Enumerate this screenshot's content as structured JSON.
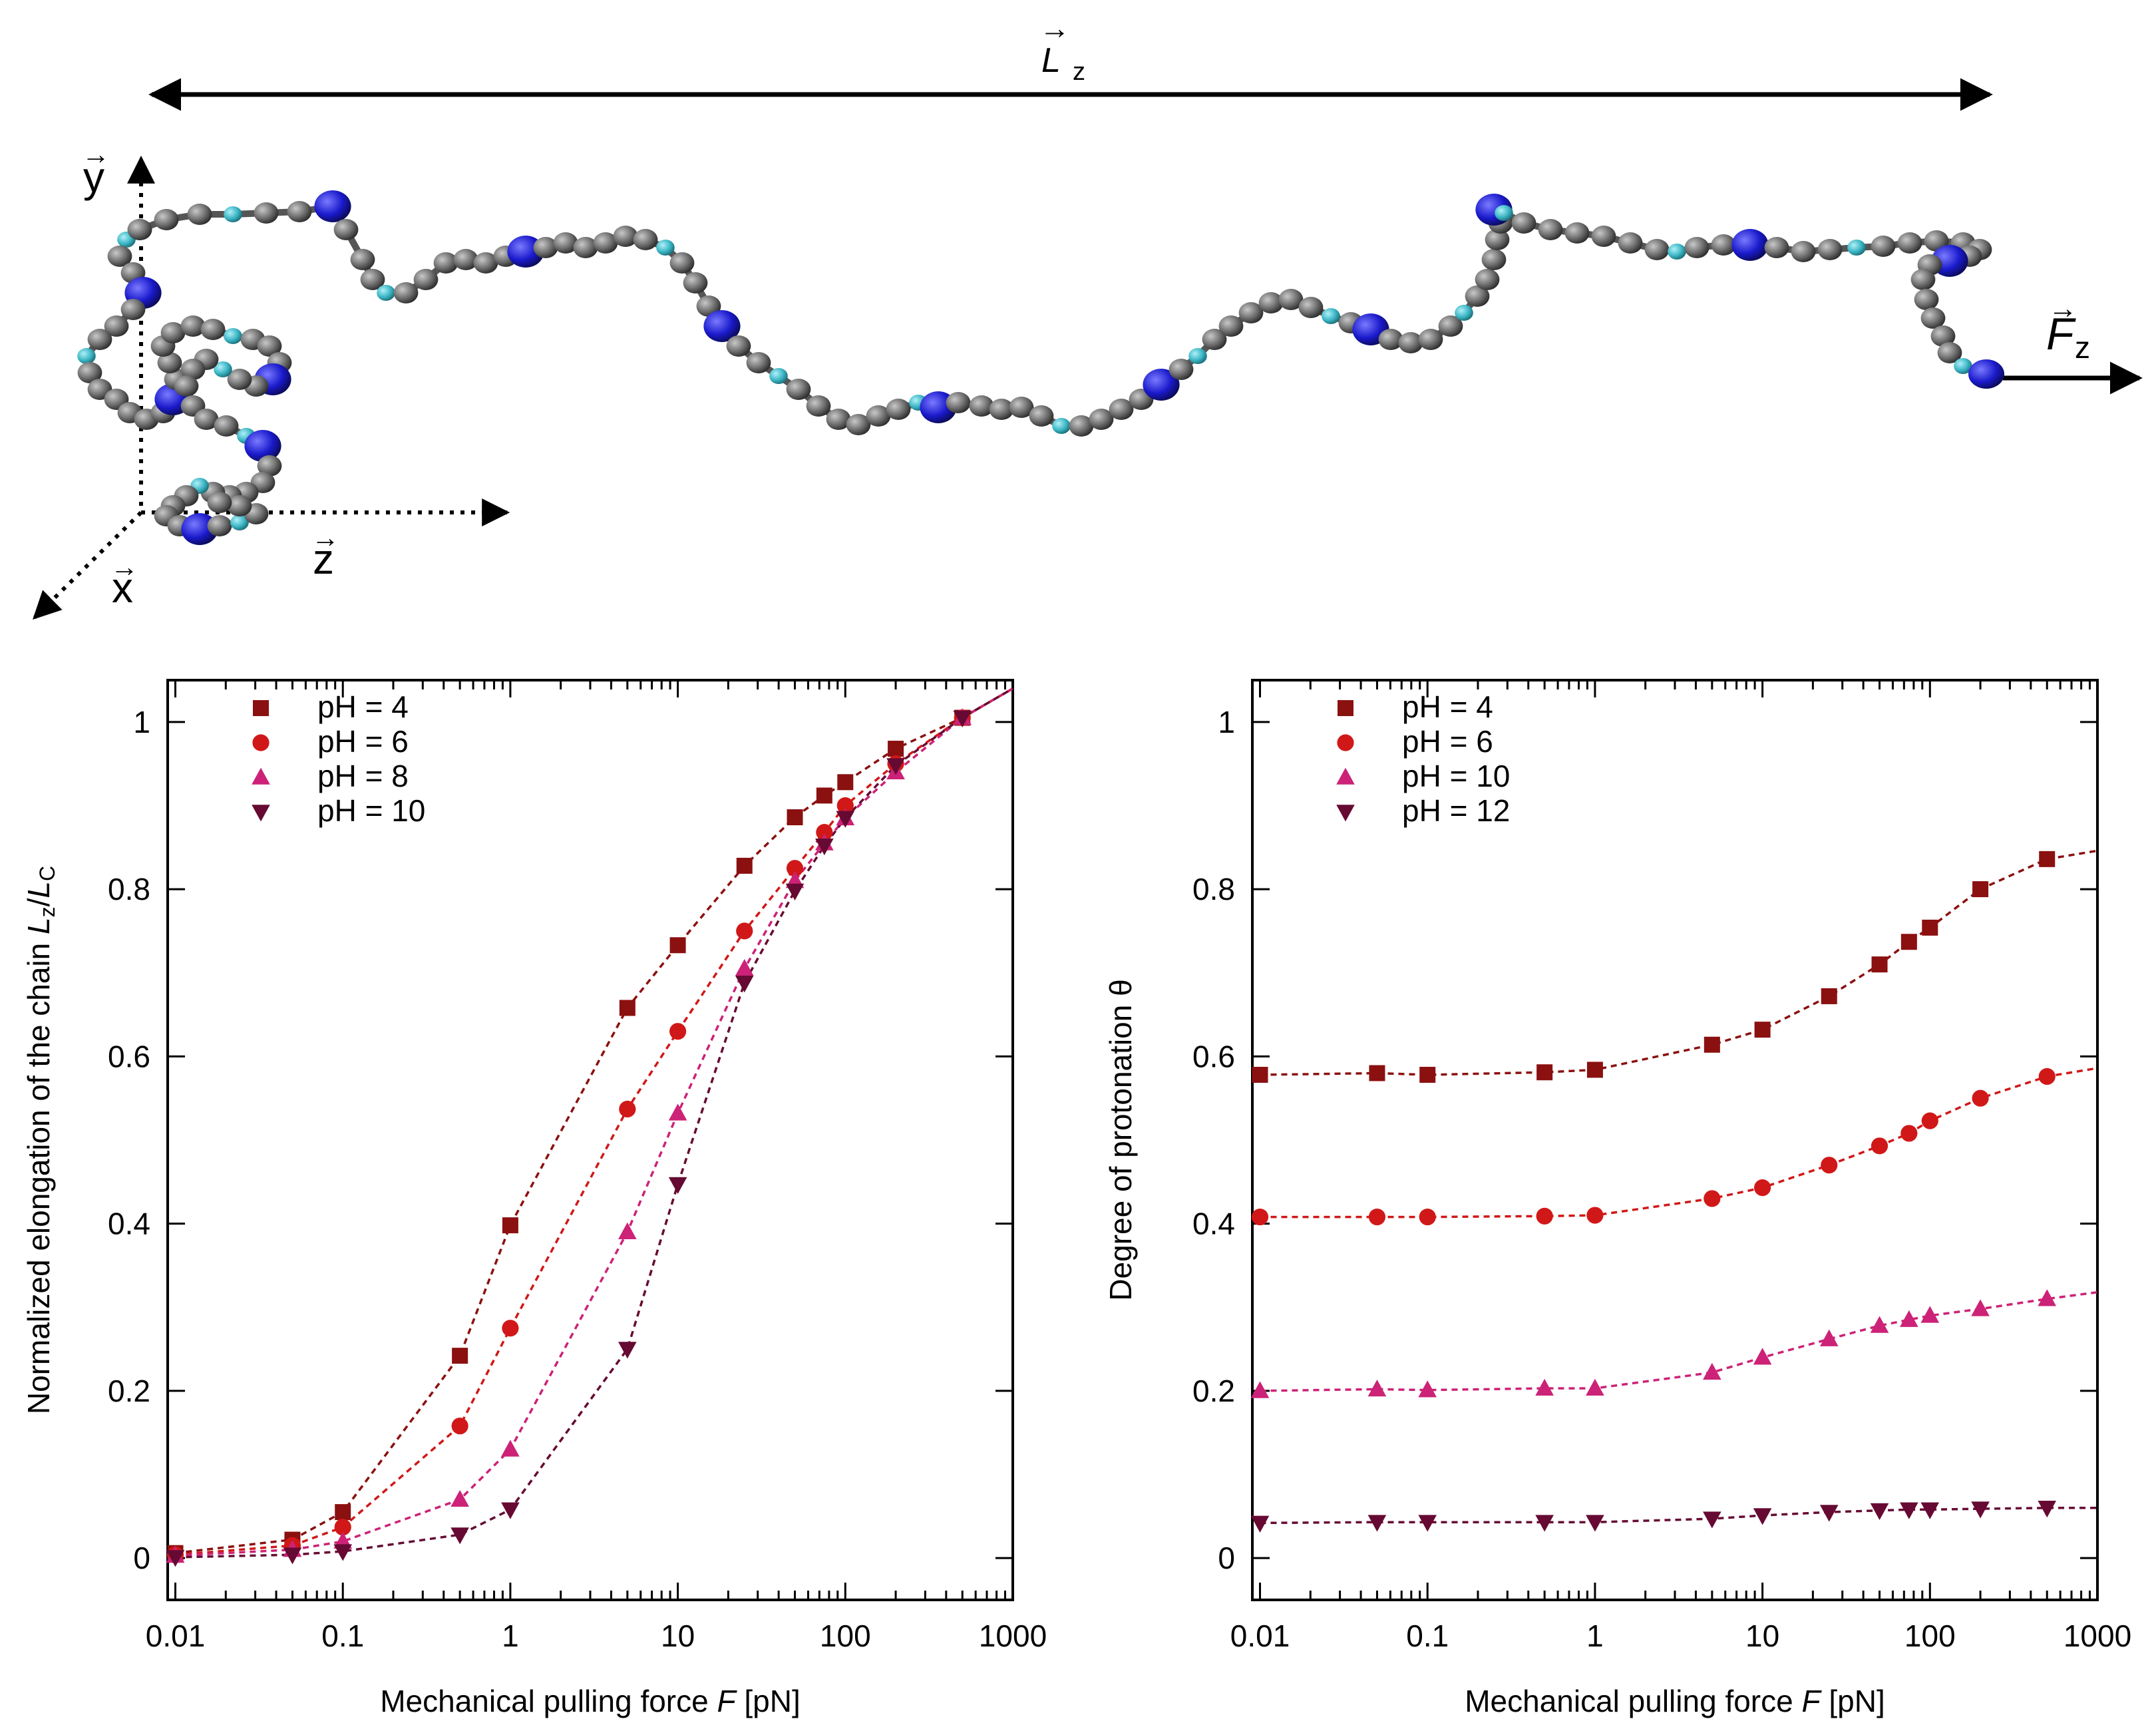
{
  "diagram": {
    "labels": {
      "Lz": "L",
      "Lz_sub": "z",
      "Fz": "F",
      "Fz_sub": "z",
      "y_axis": "y",
      "x_axis": "x",
      "z_axis": "z",
      "arrow": "→"
    },
    "colors": {
      "carbon": "#6b6b6b",
      "nitrogen": "#1a1acc",
      "hydrogen": "#3ab5c4"
    }
  },
  "chart_data": [
    {
      "type": "line",
      "xscale": "log",
      "xlabel_main": "Mechanical pulling force ",
      "xlabel_var": "F",
      "xlabel_unit": " [pN]",
      "ylabel_main": "Normalized elongation of the chain ",
      "ylabel_var1": "L",
      "ylabel_sub1": "z",
      "ylabel_slash": "/",
      "ylabel_var2": "L",
      "ylabel_sub2": "C",
      "xlim": [
        0.009,
        1000
      ],
      "ylim": [
        -0.05,
        1.05
      ],
      "xticks": [
        0.01,
        0.1,
        1,
        10,
        100,
        1000
      ],
      "xtick_labels": [
        "0.01",
        "0.1",
        "1",
        "10",
        "100",
        "1000"
      ],
      "yticks": [
        0,
        0.2,
        0.4,
        0.6,
        0.8,
        1
      ],
      "ytick_labels": [
        "0",
        "0.2",
        "0.4",
        "0.6",
        "0.8",
        "1"
      ],
      "series": [
        {
          "name": "pH = 4",
          "marker": "square",
          "color": "#8b1010",
          "x": [
            0.01,
            0.05,
            0.1,
            0.5,
            1,
            5,
            10,
            25,
            50,
            75,
            100,
            200,
            500
          ],
          "values": [
            0.006,
            0.022,
            0.055,
            0.242,
            0.398,
            0.658,
            0.733,
            0.828,
            0.886,
            0.912,
            0.928,
            0.968,
            1.005
          ]
        },
        {
          "name": "pH = 6",
          "marker": "circle",
          "color": "#d11818",
          "x": [
            0.01,
            0.05,
            0.1,
            0.5,
            1,
            5,
            10,
            25,
            50,
            75,
            100,
            200,
            500
          ],
          "values": [
            0.004,
            0.015,
            0.037,
            0.158,
            0.275,
            0.537,
            0.63,
            0.75,
            0.825,
            0.868,
            0.9,
            0.95,
            1.005
          ]
        },
        {
          "name": "pH = 8",
          "marker": "triangle-up",
          "color": "#cc2277",
          "x": [
            0.01,
            0.05,
            0.1,
            0.5,
            1,
            5,
            10,
            25,
            50,
            75,
            100,
            200,
            500
          ],
          "values": [
            0.003,
            0.01,
            0.02,
            0.07,
            0.13,
            0.39,
            0.532,
            0.705,
            0.81,
            0.855,
            0.885,
            0.94,
            1.005
          ]
        },
        {
          "name": "pH = 10",
          "marker": "triangle-down",
          "color": "#660a33",
          "x": [
            0.01,
            0.05,
            0.1,
            0.5,
            1,
            5,
            10,
            25,
            50,
            75,
            100,
            200,
            500
          ],
          "values": [
            0.001,
            0.004,
            0.008,
            0.028,
            0.058,
            0.25,
            0.447,
            0.688,
            0.798,
            0.852,
            0.885,
            0.948,
            1.005
          ]
        }
      ],
      "fit_extension": [
        {
          "series": 0,
          "x": [
            500,
            1000
          ],
          "values": [
            1.005,
            1.04
          ]
        },
        {
          "series": 1,
          "x": [
            500,
            1000
          ],
          "values": [
            1.005,
            1.04
          ]
        },
        {
          "series": 2,
          "x": [
            500,
            1000
          ],
          "values": [
            1.005,
            1.04
          ]
        },
        {
          "series": 3,
          "x": [
            500,
            1000
          ],
          "values": [
            1.005,
            1.04
          ]
        }
      ],
      "legend_position": "top-left"
    },
    {
      "type": "line",
      "xscale": "log",
      "xlabel_main": "Mechanical pulling force ",
      "xlabel_var": "F",
      "xlabel_unit": " [pN]",
      "ylabel_main": "Degree of protonation θ",
      "xlim": [
        0.009,
        1000
      ],
      "ylim": [
        -0.05,
        1.05
      ],
      "xticks": [
        0.01,
        0.1,
        1,
        10,
        100,
        1000
      ],
      "xtick_labels": [
        "0.01",
        "0.1",
        "1",
        "10",
        "100",
        "1000"
      ],
      "yticks": [
        0,
        0.2,
        0.4,
        0.6,
        0.8,
        1
      ],
      "ytick_labels": [
        "0",
        "0.2",
        "0.4",
        "0.6",
        "0.8",
        "1"
      ],
      "series": [
        {
          "name": "pH = 4",
          "marker": "square",
          "color": "#8b1010",
          "x": [
            0.01,
            0.05,
            0.1,
            0.5,
            1,
            5,
            10,
            25,
            50,
            75,
            100,
            200,
            500
          ],
          "values": [
            0.578,
            0.58,
            0.578,
            0.581,
            0.584,
            0.614,
            0.632,
            0.672,
            0.71,
            0.737,
            0.754,
            0.8,
            0.836
          ]
        },
        {
          "name": "pH = 6",
          "marker": "circle",
          "color": "#d11818",
          "x": [
            0.01,
            0.05,
            0.1,
            0.5,
            1,
            5,
            10,
            25,
            50,
            75,
            100,
            200,
            500
          ],
          "values": [
            0.408,
            0.408,
            0.408,
            0.409,
            0.41,
            0.43,
            0.443,
            0.47,
            0.493,
            0.508,
            0.523,
            0.55,
            0.576
          ]
        },
        {
          "name": "pH = 10",
          "marker": "triangle-up",
          "color": "#cc2277",
          "x": [
            0.01,
            0.05,
            0.1,
            0.5,
            1,
            5,
            10,
            25,
            50,
            75,
            100,
            200,
            500
          ],
          "values": [
            0.2,
            0.202,
            0.201,
            0.203,
            0.203,
            0.222,
            0.24,
            0.262,
            0.278,
            0.285,
            0.29,
            0.298,
            0.31
          ]
        },
        {
          "name": "pH = 12",
          "marker": "triangle-down",
          "color": "#660a33",
          "x": [
            0.01,
            0.05,
            0.1,
            0.5,
            1,
            5,
            10,
            25,
            50,
            75,
            100,
            200,
            500
          ],
          "values": [
            0.042,
            0.043,
            0.043,
            0.043,
            0.043,
            0.047,
            0.051,
            0.055,
            0.057,
            0.058,
            0.058,
            0.059,
            0.06
          ]
        }
      ],
      "fit_extension": [
        {
          "series": 0,
          "x": [
            500,
            1000
          ],
          "values": [
            0.836,
            0.846
          ]
        },
        {
          "series": 1,
          "x": [
            500,
            1000
          ],
          "values": [
            0.576,
            0.586
          ]
        },
        {
          "series": 2,
          "x": [
            500,
            1000
          ],
          "values": [
            0.31,
            0.318
          ]
        },
        {
          "series": 3,
          "x": [
            500,
            1000
          ],
          "values": [
            0.06,
            0.06
          ]
        }
      ],
      "legend_position": "top-left"
    }
  ]
}
